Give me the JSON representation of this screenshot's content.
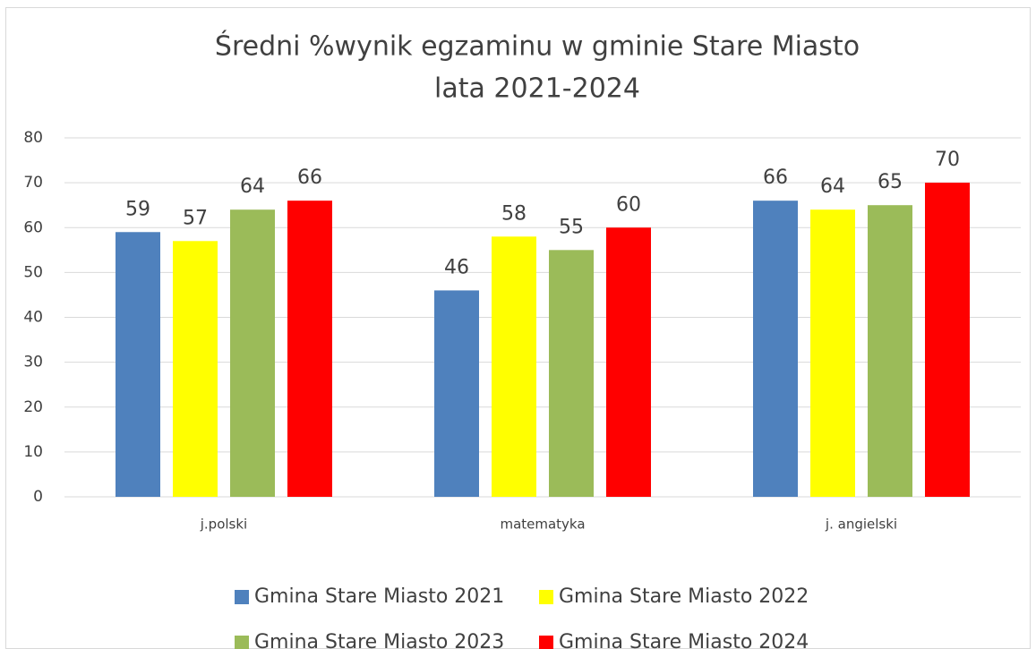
{
  "chart_data": {
    "type": "bar",
    "title": "Średni %wynik egzaminu w gminie Stare Miasto",
    "subtitle": "lata 2021-2024",
    "categories": [
      "j.polski",
      "matematyka",
      "j. angielski"
    ],
    "series": [
      {
        "name": "Gmina Stare Miasto 2021",
        "color": "#4f81bd",
        "values": [
          59,
          46,
          66
        ]
      },
      {
        "name": "Gmina Stare Miasto 2022",
        "color": "#ffff00",
        "values": [
          57,
          58,
          64
        ]
      },
      {
        "name": "Gmina Stare Miasto 2023",
        "color": "#9bbb59",
        "values": [
          64,
          55,
          65
        ]
      },
      {
        "name": "Gmina Stare Miasto 2024",
        "color": "#ff0000",
        "values": [
          66,
          60,
          70
        ]
      }
    ],
    "ylim": [
      0,
      80
    ],
    "yticks": [
      0,
      10,
      20,
      30,
      40,
      50,
      60,
      70,
      80
    ],
    "grid": true,
    "legend": "bottom"
  }
}
